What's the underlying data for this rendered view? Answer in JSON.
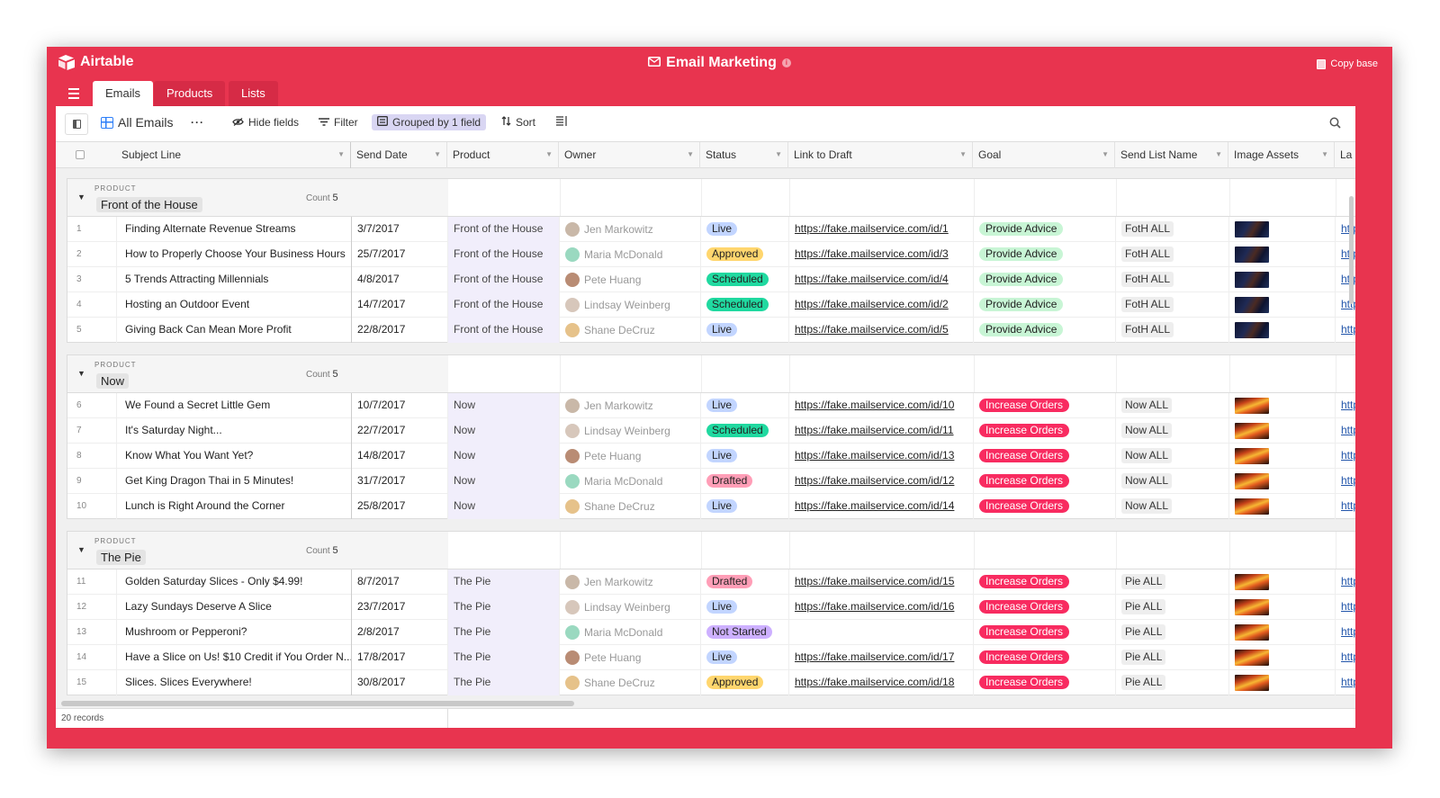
{
  "app": {
    "name": "Airtable",
    "base_title": "Email Marketing",
    "copy_label": "Copy base"
  },
  "tabs": [
    {
      "label": "Emails",
      "active": true
    },
    {
      "label": "Products",
      "active": false
    },
    {
      "label": "Lists",
      "active": false
    }
  ],
  "toolbar": {
    "view_name": "All Emails",
    "more": "···",
    "hide_fields": "Hide fields",
    "filter": "Filter",
    "grouped": "Grouped by 1 field",
    "sort": "Sort"
  },
  "columns": [
    "Subject Line",
    "Send Date",
    "Product",
    "Owner",
    "Status",
    "Link to Draft",
    "Goal",
    "Send List Name",
    "Image Assets",
    "La"
  ],
  "group_label": "PRODUCT",
  "count_label": "Count",
  "colors": {
    "brand": "#e8344f",
    "status": {
      "Live": "#c2d5ff",
      "Approved": "#ffd66e",
      "Scheduled": "#20d9a0",
      "Drafted": "#ff9eb7",
      "Not Started": "#cdb0ff"
    },
    "goal": {
      "Provide Advice": "#c8f5d5",
      "Increase Orders": "#f82b60"
    }
  },
  "owners": {
    "Jen Markowitz": "#c9b8a8",
    "Maria McDonald": "#9ad9c0",
    "Pete Huang": "#b98c74",
    "Lindsay Weinberg": "#d7c7bb",
    "Shane DeCruz": "#e6c28a"
  },
  "groups": [
    {
      "name": "Front of the House",
      "count": "5",
      "image_style": "dark",
      "rows": [
        {
          "n": "1",
          "subject": "Finding Alternate Revenue Streams",
          "date": "3/7/2017",
          "product": "Front of the House",
          "owner": "Jen Markowitz",
          "status": "Live",
          "link": "https://fake.mailservice.com/id/1",
          "goal": "Provide Advice",
          "list": "FotH ALL",
          "last": "http"
        },
        {
          "n": "2",
          "subject": "How to Properly Choose Your Business Hours",
          "date": "25/7/2017",
          "product": "Front of the House",
          "owner": "Maria McDonald",
          "status": "Approved",
          "link": "https://fake.mailservice.com/id/3",
          "goal": "Provide Advice",
          "list": "FotH ALL",
          "last": "http"
        },
        {
          "n": "3",
          "subject": "5 Trends Attracting Millennials",
          "date": "4/8/2017",
          "product": "Front of the House",
          "owner": "Pete Huang",
          "status": "Scheduled",
          "link": "https://fake.mailservice.com/id/4",
          "goal": "Provide Advice",
          "list": "FotH ALL",
          "last": "http"
        },
        {
          "n": "4",
          "subject": "Hosting an Outdoor Event",
          "date": "14/7/2017",
          "product": "Front of the House",
          "owner": "Lindsay Weinberg",
          "status": "Scheduled",
          "link": "https://fake.mailservice.com/id/2",
          "goal": "Provide Advice",
          "list": "FotH ALL",
          "last": "http"
        },
        {
          "n": "5",
          "subject": "Giving Back Can Mean More Profit",
          "date": "22/8/2017",
          "product": "Front of the House",
          "owner": "Shane DeCruz",
          "status": "Live",
          "link": "https://fake.mailservice.com/id/5",
          "goal": "Provide Advice",
          "list": "FotH ALL",
          "last": "http"
        }
      ]
    },
    {
      "name": "Now",
      "count": "5",
      "image_style": "fire",
      "rows": [
        {
          "n": "6",
          "subject": "We Found a Secret Little Gem",
          "date": "10/7/2017",
          "product": "Now",
          "owner": "Jen Markowitz",
          "status": "Live",
          "link": "https://fake.mailservice.com/id/10",
          "goal": "Increase Orders",
          "list": "Now ALL",
          "last": "http"
        },
        {
          "n": "7",
          "subject": "It's Saturday Night...",
          "date": "22/7/2017",
          "product": "Now",
          "owner": "Lindsay Weinberg",
          "status": "Scheduled",
          "link": "https://fake.mailservice.com/id/11",
          "goal": "Increase Orders",
          "list": "Now ALL",
          "last": "http"
        },
        {
          "n": "8",
          "subject": "Know What You Want Yet?",
          "date": "14/8/2017",
          "product": "Now",
          "owner": "Pete Huang",
          "status": "Live",
          "link": "https://fake.mailservice.com/id/13",
          "goal": "Increase Orders",
          "list": "Now ALL",
          "last": "http"
        },
        {
          "n": "9",
          "subject": "Get King Dragon Thai in 5 Minutes!",
          "date": "31/7/2017",
          "product": "Now",
          "owner": "Maria McDonald",
          "status": "Drafted",
          "link": "https://fake.mailservice.com/id/12",
          "goal": "Increase Orders",
          "list": "Now ALL",
          "last": "http"
        },
        {
          "n": "10",
          "subject": "Lunch is Right Around the Corner",
          "date": "25/8/2017",
          "product": "Now",
          "owner": "Shane DeCruz",
          "status": "Live",
          "link": "https://fake.mailservice.com/id/14",
          "goal": "Increase Orders",
          "list": "Now ALL",
          "last": "http"
        }
      ]
    },
    {
      "name": "The Pie",
      "count": "5",
      "image_style": "fire",
      "rows": [
        {
          "n": "11",
          "subject": "Golden Saturday Slices - Only $4.99!",
          "date": "8/7/2017",
          "product": "The Pie",
          "owner": "Jen Markowitz",
          "status": "Drafted",
          "link": "https://fake.mailservice.com/id/15",
          "goal": "Increase Orders",
          "list": "Pie ALL",
          "last": "http"
        },
        {
          "n": "12",
          "subject": "Lazy Sundays Deserve A Slice",
          "date": "23/7/2017",
          "product": "The Pie",
          "owner": "Lindsay Weinberg",
          "status": "Live",
          "link": "https://fake.mailservice.com/id/16",
          "goal": "Increase Orders",
          "list": "Pie ALL",
          "last": "http"
        },
        {
          "n": "13",
          "subject": "Mushroom or Pepperoni?",
          "date": "2/8/2017",
          "product": "The Pie",
          "owner": "Maria McDonald",
          "status": "Not Started",
          "link": "",
          "goal": "Increase Orders",
          "list": "Pie ALL",
          "last": "http"
        },
        {
          "n": "14",
          "subject": "Have a Slice on Us! $10 Credit if You Order N...",
          "date": "17/8/2017",
          "product": "The Pie",
          "owner": "Pete Huang",
          "status": "Live",
          "link": "https://fake.mailservice.com/id/17",
          "goal": "Increase Orders",
          "list": "Pie ALL",
          "last": "http"
        },
        {
          "n": "15",
          "subject": "Slices. Slices Everywhere!",
          "date": "30/8/2017",
          "product": "The Pie",
          "owner": "Shane DeCruz",
          "status": "Approved",
          "link": "https://fake.mailservice.com/id/18",
          "goal": "Increase Orders",
          "list": "Pie ALL",
          "last": "http"
        }
      ]
    }
  ],
  "footer": {
    "records": "20 records"
  }
}
